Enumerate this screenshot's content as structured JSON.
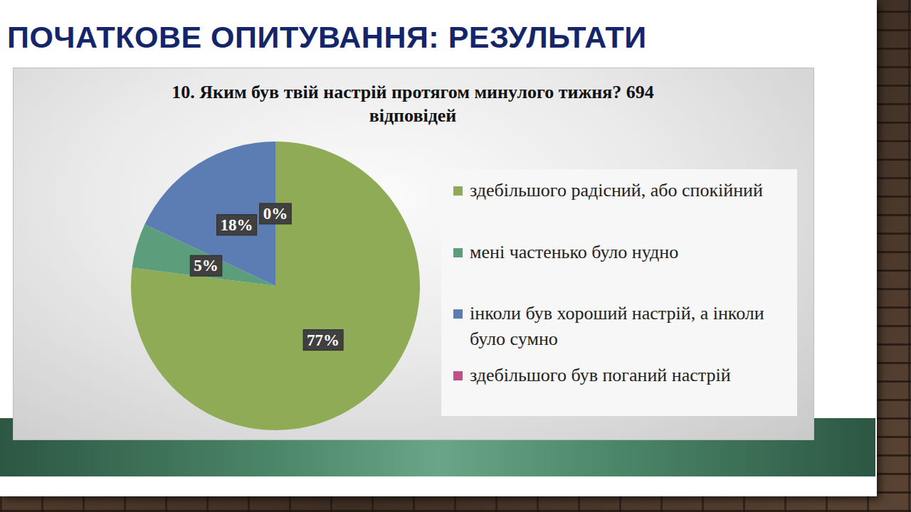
{
  "header": {
    "title": "ПОЧАТКОВЕ ОПИТУВАННЯ: РЕЗУЛЬТАТИ"
  },
  "chart_data": {
    "type": "pie",
    "title": "10. Яким був твій настрій протягом минулого тижня? 694 відповідей",
    "categories": [
      "здебільшого радісний, або спокійний",
      "мені частенько було нудно",
      "інколи був хороший настрій, а інколи було сумно",
      "здебільшого був поганий настрій"
    ],
    "values": [
      77,
      5,
      18,
      0
    ],
    "value_labels": [
      "77%",
      "5%",
      "18%",
      "0%"
    ],
    "colors": [
      "#8fab55",
      "#5c9e7b",
      "#5b7db3",
      "#c0508a"
    ],
    "data_labels": true,
    "legend": "right"
  }
}
